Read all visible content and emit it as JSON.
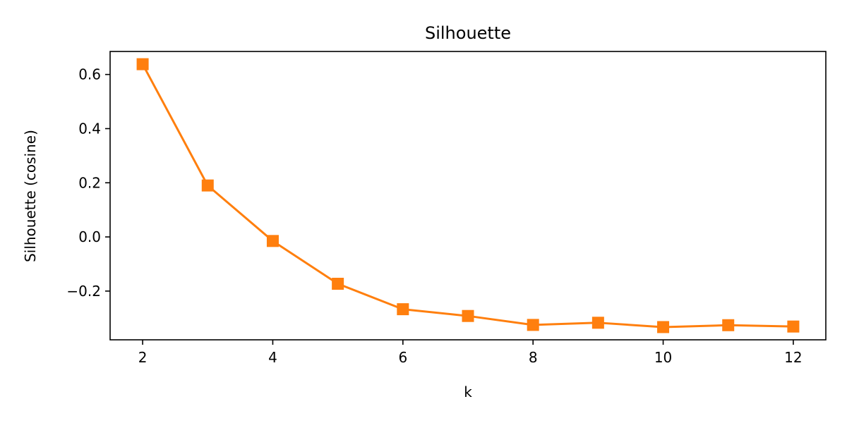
{
  "chart_data": {
    "type": "line",
    "title": "Silhouette",
    "xlabel": "k",
    "ylabel": "Silhouette (cosine)",
    "x": [
      2,
      3,
      4,
      5,
      6,
      7,
      8,
      9,
      10,
      11,
      12
    ],
    "series": [
      {
        "values": [
          0.638,
          0.19,
          -0.015,
          -0.173,
          -0.267,
          -0.292,
          -0.325,
          -0.317,
          -0.333,
          -0.326,
          -0.331
        ],
        "color": "#ff7f0e",
        "marker": "square"
      }
    ],
    "xlim": [
      1.5,
      12.5
    ],
    "ylim": [
      -0.38,
      0.685
    ],
    "xticks": [
      2,
      4,
      6,
      8,
      10,
      12
    ],
    "xtick_labels": [
      "2",
      "4",
      "6",
      "8",
      "10",
      "12"
    ],
    "yticks": [
      -0.2,
      0.0,
      0.2,
      0.4,
      0.6
    ],
    "ytick_labels": [
      "−0.2",
      "0.0",
      "0.2",
      "0.4",
      "0.6"
    ],
    "grid": false,
    "legend": "none"
  }
}
